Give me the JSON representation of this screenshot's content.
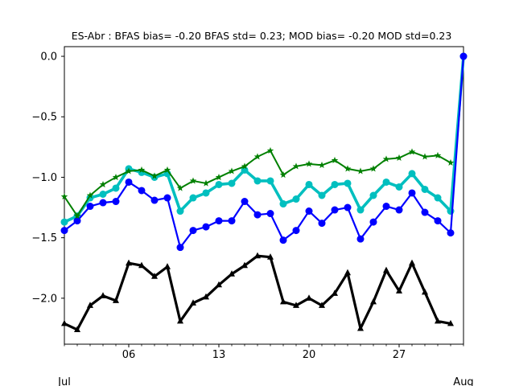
{
  "chart_data": {
    "type": "line",
    "title": "ES-Abr   : BFAS bias= -0.20 BFAS std= 0.23; MOD bias= -0.20 MOD std=0.23",
    "xlabel": "",
    "ylabel": "",
    "x_range": [
      1,
      32
    ],
    "ylim": [
      -2.38,
      0.08
    ],
    "x_ticks": [
      {
        "day": 6,
        "label": "06"
      },
      {
        "day": 13,
        "label": "13"
      },
      {
        "day": 20,
        "label": "20"
      },
      {
        "day": 27,
        "label": "27"
      }
    ],
    "x_secondary_labels": [
      {
        "day": 1,
        "label": "Jul"
      },
      {
        "day": 32,
        "label": "Aug"
      }
    ],
    "y_ticks": [
      {
        "value": 0.0,
        "label": "0.0"
      },
      {
        "value": -0.5,
        "label": "−0.5"
      },
      {
        "value": -1.0,
        "label": "−1.0"
      },
      {
        "value": -1.5,
        "label": "−1.5"
      },
      {
        "value": -2.0,
        "label": "−2.0"
      }
    ],
    "grid": false,
    "series": [
      {
        "color": "#000000",
        "marker": "triangle",
        "line_width": 3.2,
        "marker_size": 4,
        "x": [
          1,
          2,
          3,
          4,
          5,
          6,
          7,
          8,
          9,
          10,
          11,
          12,
          13,
          14,
          15,
          16,
          17,
          18,
          19,
          20,
          21,
          22,
          23,
          24,
          25,
          26,
          27,
          28,
          29,
          30,
          31
        ],
        "values": [
          -2.21,
          -2.26,
          -2.06,
          -1.98,
          -2.02,
          -1.71,
          -1.73,
          -1.82,
          -1.74,
          -2.19,
          -2.04,
          -1.99,
          -1.89,
          -1.8,
          -1.73,
          -1.65,
          -1.66,
          -2.03,
          -2.06,
          -2.0,
          -2.06,
          -1.96,
          -1.79,
          -2.25,
          -2.03,
          -1.77,
          -1.94,
          -1.71,
          -1.95,
          -2.19,
          -2.21
        ]
      },
      {
        "color": "#00bfbf",
        "marker": "circle",
        "line_width": 3.6,
        "marker_size": 4.5,
        "x": [
          1,
          2,
          3,
          4,
          5,
          6,
          7,
          8,
          9,
          10,
          11,
          12,
          13,
          14,
          15,
          16,
          17,
          18,
          19,
          20,
          21,
          22,
          23,
          24,
          25,
          26,
          27,
          28,
          29,
          30,
          31,
          32
        ],
        "values": [
          -1.37,
          -1.32,
          -1.17,
          -1.14,
          -1.09,
          -0.93,
          -0.96,
          -1.0,
          -0.97,
          -1.28,
          -1.17,
          -1.13,
          -1.06,
          -1.05,
          -0.94,
          -1.03,
          -1.03,
          -1.22,
          -1.18,
          -1.06,
          -1.15,
          -1.06,
          -1.05,
          -1.27,
          -1.15,
          -1.04,
          -1.08,
          -0.97,
          -1.1,
          -1.17,
          -1.28,
          0.0
        ]
      },
      {
        "color": "#0000ff",
        "marker": "circle",
        "line_width": 2.2,
        "marker_size": 4.5,
        "x": [
          1,
          2,
          3,
          4,
          5,
          6,
          7,
          8,
          9,
          10,
          11,
          12,
          13,
          14,
          15,
          16,
          17,
          18,
          19,
          20,
          21,
          22,
          23,
          24,
          25,
          26,
          27,
          28,
          29,
          30,
          31,
          32
        ],
        "values": [
          -1.44,
          -1.36,
          -1.24,
          -1.21,
          -1.2,
          -1.04,
          -1.11,
          -1.19,
          -1.17,
          -1.58,
          -1.44,
          -1.41,
          -1.36,
          -1.36,
          -1.2,
          -1.31,
          -1.3,
          -1.52,
          -1.44,
          -1.28,
          -1.38,
          -1.27,
          -1.25,
          -1.51,
          -1.37,
          -1.24,
          -1.27,
          -1.13,
          -1.29,
          -1.36,
          -1.46,
          0.0
        ]
      },
      {
        "color": "#008000",
        "marker": "star",
        "line_width": 2.0,
        "marker_size": 4.5,
        "x": [
          1,
          2,
          3,
          4,
          5,
          6,
          7,
          8,
          9,
          10,
          11,
          12,
          13,
          14,
          15,
          16,
          17,
          18,
          19,
          20,
          21,
          22,
          23,
          24,
          25,
          26,
          27,
          28,
          29,
          30,
          31
        ],
        "values": [
          -1.16,
          -1.32,
          -1.15,
          -1.06,
          -1.0,
          -0.95,
          -0.94,
          -0.99,
          -0.94,
          -1.09,
          -1.03,
          -1.05,
          -1.0,
          -0.95,
          -0.91,
          -0.83,
          -0.78,
          -0.98,
          -0.91,
          -0.89,
          -0.9,
          -0.86,
          -0.93,
          -0.95,
          -0.93,
          -0.85,
          -0.84,
          -0.79,
          -0.83,
          -0.82,
          -0.88
        ]
      }
    ]
  }
}
